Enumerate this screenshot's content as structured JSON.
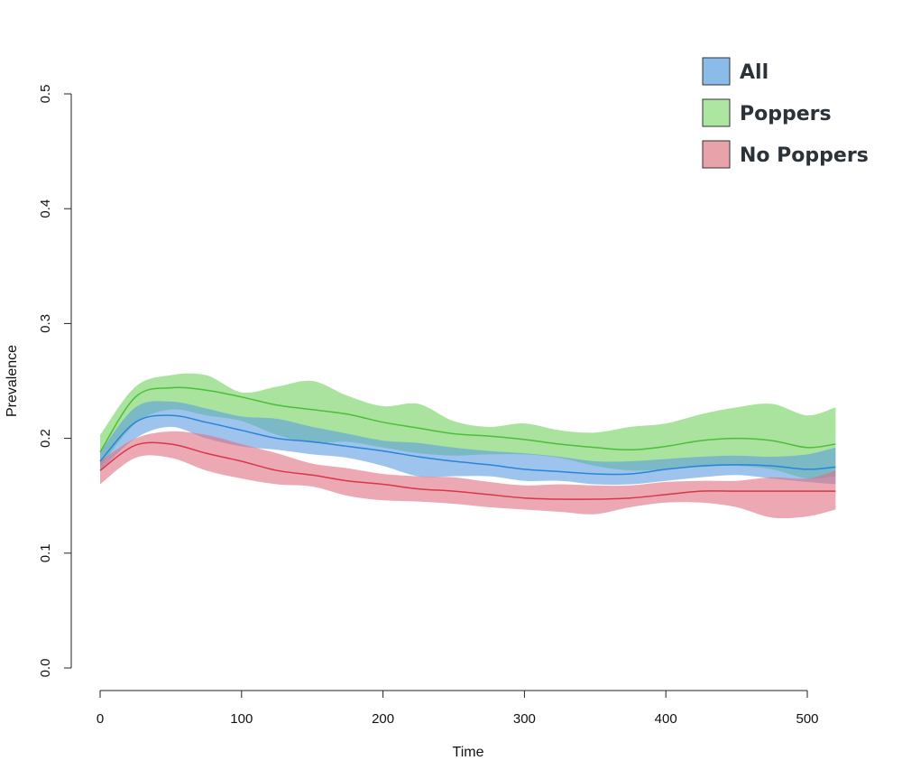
{
  "chart_data": {
    "type": "area",
    "title": "",
    "xlabel": "Time",
    "ylabel": "Prevalence",
    "xlim": [
      0,
      520
    ],
    "ylim": [
      0,
      0.5
    ],
    "x_ticks": [
      0,
      100,
      200,
      300,
      400,
      500
    ],
    "y_ticks": [
      0.0,
      0.1,
      0.2,
      0.3,
      0.4,
      0.5
    ],
    "x_tick_labels": [
      "0",
      "100",
      "200",
      "300",
      "400",
      "500"
    ],
    "y_tick_labels": [
      "0.0",
      "0.1",
      "0.2",
      "0.3",
      "0.4",
      "0.5"
    ],
    "grid": false,
    "legend_position": "top-right",
    "x": [
      0,
      25,
      50,
      75,
      100,
      125,
      150,
      175,
      200,
      225,
      250,
      275,
      300,
      325,
      350,
      375,
      400,
      425,
      450,
      475,
      500,
      520
    ],
    "series": [
      {
        "name": "Poppers",
        "line_color": "#4cbf3a",
        "fill_color": "#6fd15e",
        "mid": [
          0.188,
          0.236,
          0.244,
          0.242,
          0.236,
          0.229,
          0.225,
          0.221,
          0.214,
          0.209,
          0.204,
          0.202,
          0.199,
          0.195,
          0.192,
          0.19,
          0.193,
          0.198,
          0.2,
          0.198,
          0.192,
          0.195
        ],
        "upper": [
          0.203,
          0.245,
          0.255,
          0.255,
          0.24,
          0.245,
          0.25,
          0.237,
          0.228,
          0.23,
          0.215,
          0.21,
          0.213,
          0.207,
          0.205,
          0.21,
          0.213,
          0.221,
          0.227,
          0.23,
          0.22,
          0.227
        ],
        "lower": [
          0.175,
          0.213,
          0.225,
          0.22,
          0.215,
          0.203,
          0.196,
          0.197,
          0.192,
          0.187,
          0.185,
          0.186,
          0.186,
          0.183,
          0.176,
          0.172,
          0.173,
          0.175,
          0.176,
          0.173,
          0.165,
          0.167
        ]
      },
      {
        "name": "All",
        "line_color": "#2a84d8",
        "fill_color": "#5d9de3",
        "mid": [
          0.18,
          0.214,
          0.22,
          0.214,
          0.207,
          0.2,
          0.197,
          0.193,
          0.189,
          0.184,
          0.18,
          0.177,
          0.173,
          0.171,
          0.169,
          0.169,
          0.173,
          0.176,
          0.177,
          0.176,
          0.173,
          0.175
        ],
        "upper": [
          0.188,
          0.227,
          0.232,
          0.226,
          0.219,
          0.217,
          0.21,
          0.204,
          0.198,
          0.196,
          0.192,
          0.189,
          0.187,
          0.184,
          0.18,
          0.18,
          0.182,
          0.184,
          0.185,
          0.184,
          0.186,
          0.192
        ],
        "lower": [
          0.172,
          0.2,
          0.21,
          0.2,
          0.193,
          0.19,
          0.186,
          0.183,
          0.176,
          0.167,
          0.167,
          0.167,
          0.163,
          0.163,
          0.16,
          0.16,
          0.163,
          0.166,
          0.168,
          0.165,
          0.162,
          0.16
        ]
      },
      {
        "name": "No Poppers",
        "line_color": "#d9364a",
        "fill_color": "#e07080",
        "mid": [
          0.172,
          0.194,
          0.195,
          0.187,
          0.18,
          0.172,
          0.168,
          0.163,
          0.16,
          0.156,
          0.154,
          0.151,
          0.148,
          0.147,
          0.147,
          0.148,
          0.151,
          0.154,
          0.154,
          0.154,
          0.154,
          0.154
        ],
        "upper": [
          0.18,
          0.2,
          0.206,
          0.203,
          0.195,
          0.187,
          0.178,
          0.174,
          0.169,
          0.167,
          0.166,
          0.162,
          0.159,
          0.16,
          0.159,
          0.159,
          0.162,
          0.163,
          0.163,
          0.166,
          0.165,
          0.172
        ],
        "lower": [
          0.16,
          0.183,
          0.183,
          0.172,
          0.165,
          0.16,
          0.158,
          0.15,
          0.146,
          0.145,
          0.143,
          0.14,
          0.138,
          0.136,
          0.134,
          0.14,
          0.144,
          0.144,
          0.14,
          0.131,
          0.132,
          0.138
        ]
      }
    ],
    "legend": [
      {
        "name": "All",
        "color": "#8bbbe9"
      },
      {
        "name": "Poppers",
        "color": "#ade6a0"
      },
      {
        "name": "No Poppers",
        "color": "#e8a2aa"
      }
    ]
  }
}
